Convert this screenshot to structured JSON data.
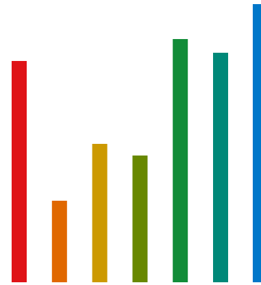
{
  "chart_data": {
    "type": "bar",
    "title": "",
    "xlabel": "",
    "ylabel": "",
    "categories": [
      "",
      "",
      "",
      "",
      "",
      "",
      ""
    ],
    "values": [
      323,
      119,
      202,
      185,
      355,
      335,
      406
    ],
    "colors": [
      "#df1317",
      "#e06800",
      "#cc9900",
      "#688800",
      "#128c38",
      "#008878",
      "#0077c9"
    ],
    "ylim": [
      0,
      406
    ],
    "grid": false,
    "legend": "none"
  }
}
